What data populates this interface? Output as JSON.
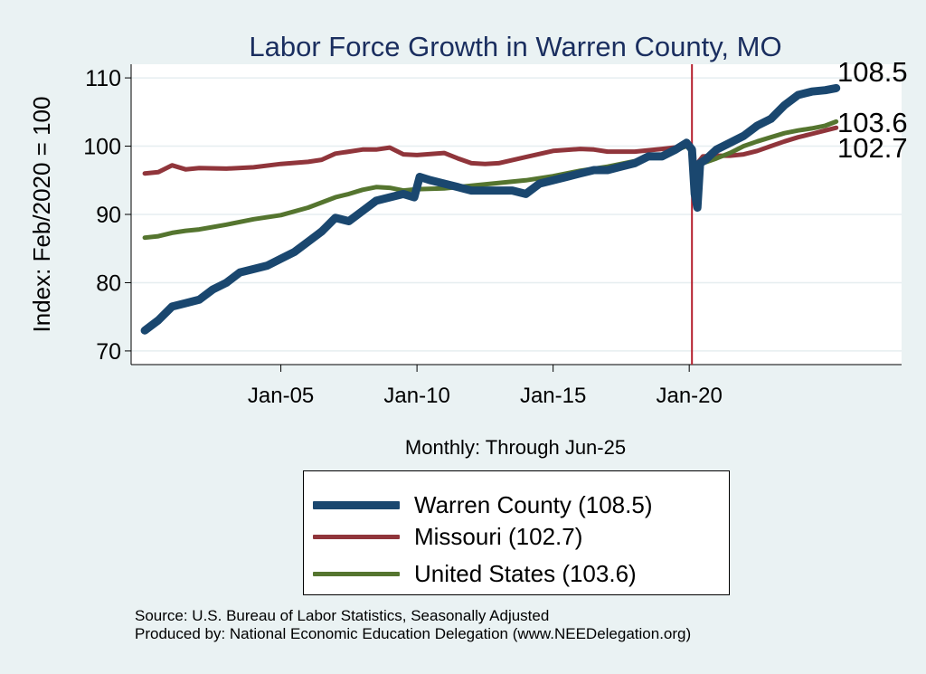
{
  "chart_data": {
    "type": "line",
    "title": "Labor Force Growth in Warren  County, MO",
    "xlabel": "Monthly: Through Jun-25",
    "ylabel": "Index: Feb/2020 = 100",
    "ylim": [
      68,
      112
    ],
    "xlim": [
      1999.5,
      2027.8
    ],
    "yticks": [
      70,
      80,
      90,
      100,
      110
    ],
    "xticks": [
      {
        "x": 2005,
        "label": "Jan-05"
      },
      {
        "x": 2010,
        "label": "Jan-10"
      },
      {
        "x": 2015,
        "label": "Jan-15"
      },
      {
        "x": 2020,
        "label": "Jan-20"
      }
    ],
    "reference_line": {
      "x": 2020.1,
      "color": "#b5202e"
    },
    "series": [
      {
        "name": "Warren  County",
        "legend": "Warren  County (108.5)",
        "end_label": "108.5",
        "color": "#1a476f",
        "x": [
          2000.0,
          2000.5,
          2001.0,
          2001.5,
          2002.0,
          2002.5,
          2003.0,
          2003.5,
          2004.0,
          2004.5,
          2005.0,
          2005.5,
          2006.0,
          2006.5,
          2007.0,
          2007.5,
          2008.0,
          2008.5,
          2009.0,
          2009.5,
          2009.9,
          2010.1,
          2010.5,
          2011.0,
          2011.5,
          2012.0,
          2012.5,
          2013.0,
          2013.5,
          2014.0,
          2014.5,
          2015.0,
          2015.5,
          2016.0,
          2016.5,
          2017.0,
          2017.5,
          2018.0,
          2018.5,
          2019.0,
          2019.5,
          2019.9,
          2020.1,
          2020.2,
          2020.3,
          2020.4,
          2020.6,
          2021.0,
          2021.5,
          2022.0,
          2022.5,
          2023.0,
          2023.5,
          2024.0,
          2024.5,
          2025.0,
          2025.4
        ],
        "values": [
          73.0,
          74.5,
          76.5,
          77.0,
          77.5,
          79.0,
          80.0,
          81.5,
          82.0,
          82.5,
          83.5,
          84.5,
          86.0,
          87.5,
          89.5,
          89.0,
          90.5,
          92.0,
          92.5,
          93.0,
          92.5,
          95.5,
          95.0,
          94.5,
          94.0,
          93.5,
          93.5,
          93.5,
          93.5,
          93.0,
          94.5,
          95.0,
          95.5,
          96.0,
          96.5,
          96.5,
          97.0,
          97.5,
          98.5,
          98.5,
          99.5,
          100.5,
          99.5,
          93.0,
          91.0,
          97.5,
          98.0,
          99.5,
          100.5,
          101.5,
          103.0,
          104.0,
          106.0,
          107.5,
          108.0,
          108.2,
          108.5
        ]
      },
      {
        "name": "Missouri",
        "legend": "Missouri (102.7)",
        "end_label": "102.7",
        "color": "#90353b",
        "x": [
          2000.0,
          2000.5,
          2001.0,
          2001.5,
          2002.0,
          2003.0,
          2004.0,
          2005.0,
          2006.0,
          2006.5,
          2007.0,
          2007.5,
          2008.0,
          2008.5,
          2009.0,
          2009.5,
          2010.0,
          2011.0,
          2011.5,
          2012.0,
          2012.5,
          2013.0,
          2014.0,
          2015.0,
          2016.0,
          2016.5,
          2017.0,
          2018.0,
          2019.0,
          2019.9,
          2020.1,
          2020.2,
          2020.3,
          2020.5,
          2021.0,
          2021.5,
          2022.0,
          2022.5,
          2023.0,
          2023.5,
          2024.0,
          2024.5,
          2025.0,
          2025.4
        ],
        "values": [
          96.0,
          96.2,
          97.2,
          96.6,
          96.8,
          96.7,
          96.9,
          97.4,
          97.7,
          98.0,
          98.9,
          99.2,
          99.5,
          99.5,
          99.8,
          98.8,
          98.7,
          99.0,
          98.2,
          97.5,
          97.4,
          97.5,
          98.4,
          99.3,
          99.6,
          99.5,
          99.2,
          99.2,
          99.6,
          100.0,
          99.7,
          96.0,
          97.5,
          98.5,
          98.6,
          98.6,
          98.8,
          99.3,
          100.0,
          100.7,
          101.3,
          101.8,
          102.3,
          102.7
        ]
      },
      {
        "name": "United States",
        "legend": "United States (103.6)",
        "end_label": "103.6",
        "color": "#55752f",
        "x": [
          2000.0,
          2000.5,
          2001.0,
          2001.5,
          2002.0,
          2003.0,
          2004.0,
          2005.0,
          2006.0,
          2007.0,
          2007.5,
          2008.0,
          2008.5,
          2009.0,
          2009.5,
          2010.0,
          2011.0,
          2012.0,
          2013.0,
          2014.0,
          2015.0,
          2016.0,
          2017.0,
          2018.0,
          2019.0,
          2019.9,
          2020.1,
          2020.2,
          2020.3,
          2020.5,
          2021.0,
          2021.5,
          2022.0,
          2022.5,
          2023.0,
          2023.5,
          2024.0,
          2024.5,
          2025.0,
          2025.4
        ],
        "values": [
          86.6,
          86.8,
          87.3,
          87.6,
          87.8,
          88.5,
          89.3,
          89.9,
          91.0,
          92.5,
          93.0,
          93.6,
          94.0,
          93.9,
          93.5,
          93.7,
          93.8,
          94.2,
          94.6,
          95.0,
          95.6,
          96.4,
          97.0,
          97.8,
          98.7,
          100.0,
          99.3,
          95.0,
          96.8,
          97.5,
          98.2,
          99.0,
          100.0,
          100.7,
          101.3,
          101.9,
          102.3,
          102.6,
          103.0,
          103.6
        ]
      }
    ]
  },
  "source_line_1": "Source: U.S. Bureau of Labor Statistics, Seasonally Adjusted",
  "source_line_2": "Produced by: National Economic Education Delegation (www.NEEDelegation.org)"
}
